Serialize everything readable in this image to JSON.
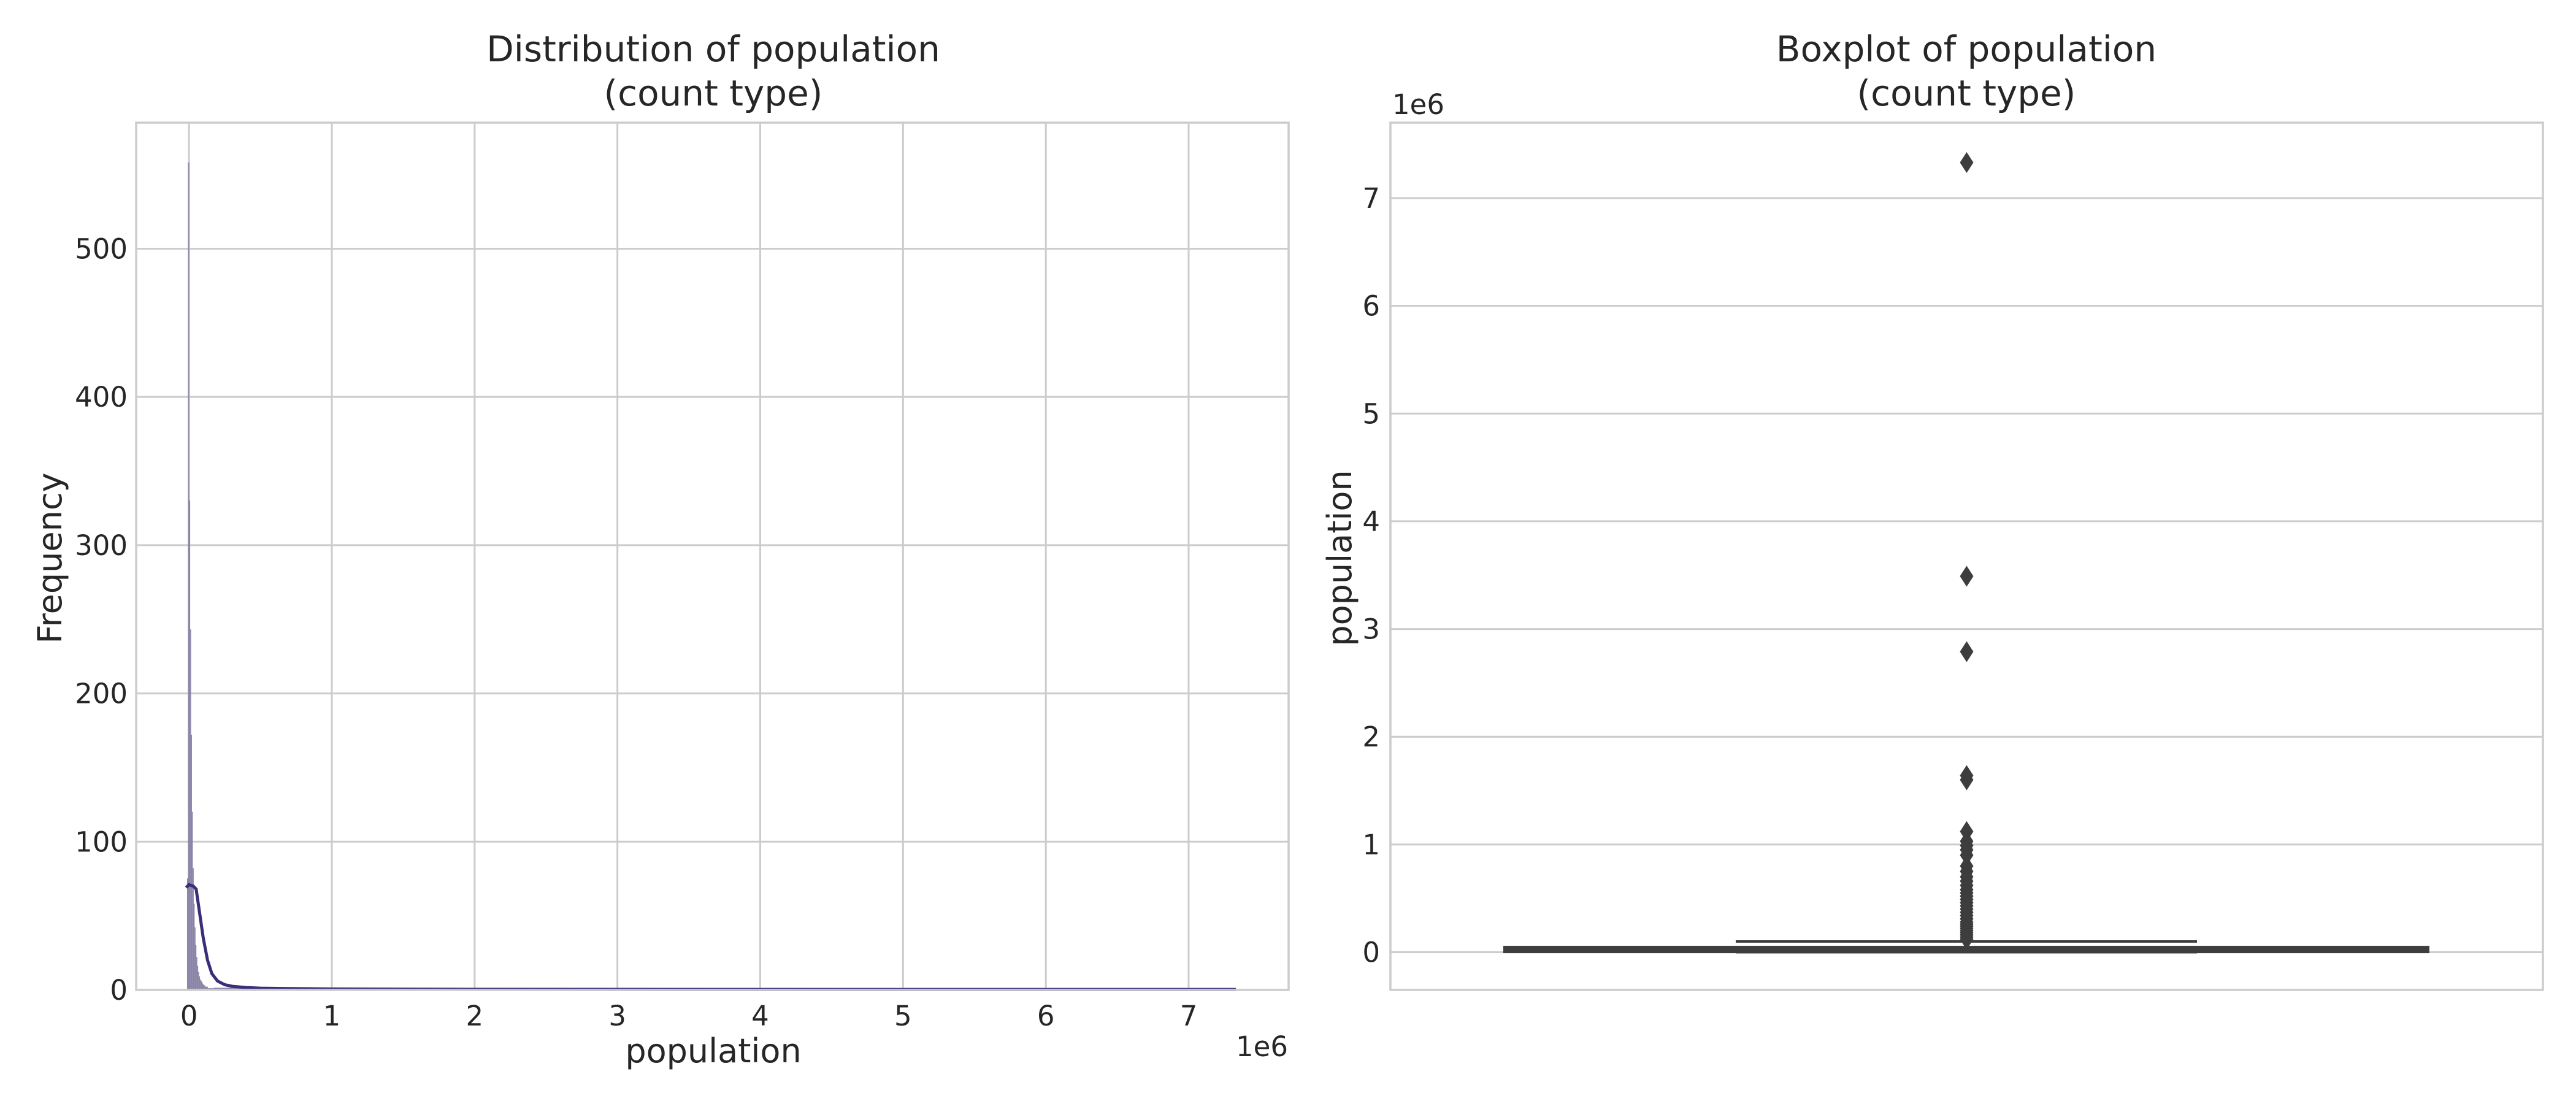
{
  "chart_data": [
    {
      "type": "histogram",
      "title_lines": [
        "Distribution of population",
        "(count type)"
      ],
      "xlabel": "population",
      "ylabel": "Frequency",
      "x_offset_text": "1e6",
      "x_scale_label_multiplier": 1000000,
      "xlim": [
        -0.37,
        7.7
      ],
      "ylim": [
        0,
        585
      ],
      "x_ticks": [
        0,
        1,
        2,
        3,
        4,
        5,
        6,
        7
      ],
      "y_ticks": [
        0,
        100,
        200,
        300,
        400,
        500
      ],
      "grid": true,
      "bars": {
        "color": "#8a82a6",
        "bin_width_x1e6": 0.0062,
        "first_bin_start_x1e6": -0.012,
        "frequencies": [
          75,
          558,
          330,
          243,
          172,
          120,
          82,
          58,
          42,
          30,
          22,
          16,
          12,
          9,
          7,
          6,
          5,
          4,
          3,
          3,
          2,
          2,
          2,
          1,
          1,
          1,
          1,
          1,
          1,
          1
        ],
        "tail_end_x1e6": 7.33
      },
      "kde": {
        "color": "#3b2d78",
        "x_x1e6": [
          -0.02,
          0.0,
          0.03,
          0.05,
          0.07,
          0.1,
          0.13,
          0.16,
          0.2,
          0.25,
          0.3,
          0.4,
          0.5,
          0.7,
          1.0,
          2.0,
          3.0,
          4.0,
          5.0,
          6.0,
          7.0,
          7.33
        ],
        "y": [
          69,
          71,
          70,
          68,
          55,
          35,
          20,
          11,
          6,
          3.5,
          2.5,
          1.6,
          1.2,
          0.9,
          0.6,
          0.4,
          0.3,
          0.25,
          0.2,
          0.2,
          0.2,
          0.2
        ]
      }
    },
    {
      "type": "boxplot",
      "title_lines": [
        "Boxplot of population",
        "(count type)"
      ],
      "ylabel": "population",
      "y_offset_text": "1e6",
      "ylim_x1e6": [
        -0.35,
        7.7
      ],
      "y_ticks": [
        0,
        1,
        2,
        3,
        4,
        5,
        6,
        7
      ],
      "grid": true,
      "color": "#3d3d3d",
      "box_x1e6": {
        "q1": 0.006,
        "median": 0.02,
        "q3": 0.048,
        "whisker_low": 0.0,
        "whisker_high": 0.1
      },
      "outliers_x1e6": [
        7.33,
        3.49,
        2.79,
        1.64,
        1.6,
        1.12,
        1.03,
        0.99,
        0.95,
        0.9,
        0.8,
        0.75,
        0.7,
        0.66,
        0.62,
        0.58,
        0.55,
        0.52,
        0.49,
        0.46,
        0.43,
        0.4,
        0.37,
        0.34,
        0.31,
        0.28,
        0.26,
        0.24,
        0.22,
        0.2,
        0.18,
        0.16,
        0.14,
        0.12
      ]
    }
  ]
}
